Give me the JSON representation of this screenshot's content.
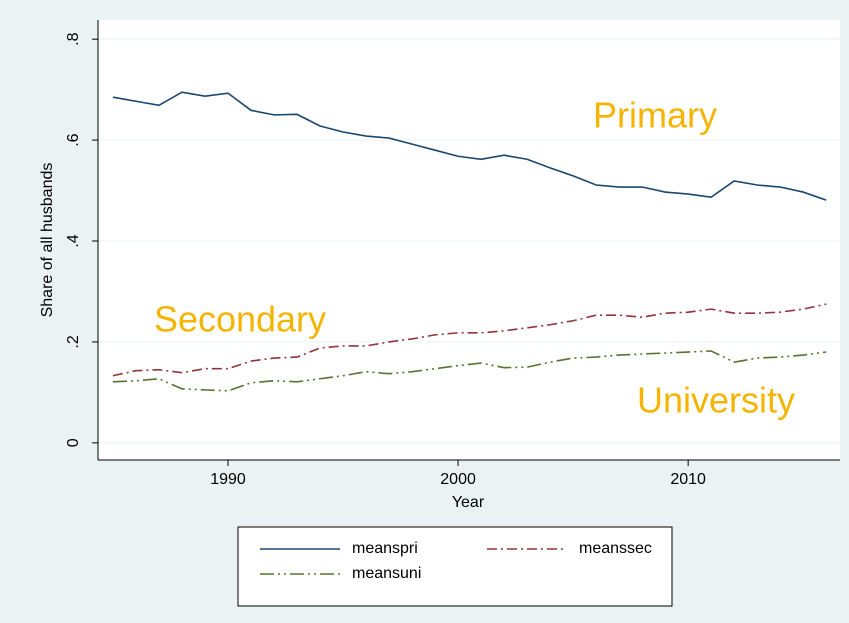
{
  "chart_data": {
    "type": "line",
    "x": [
      1985,
      1986,
      1987,
      1988,
      1989,
      1990,
      1991,
      1992,
      1993,
      1994,
      1995,
      1996,
      1997,
      1998,
      1999,
      2000,
      2001,
      2002,
      2003,
      2004,
      2005,
      2006,
      2007,
      2008,
      2009,
      2010,
      2011,
      2012,
      2013,
      2014,
      2015,
      2016
    ],
    "series": [
      {
        "name": "meanspri",
        "color": "#1a476f",
        "line_style": "solid",
        "values": [
          0.685,
          0.677,
          0.669,
          0.695,
          0.687,
          0.693,
          0.659,
          0.65,
          0.651,
          0.628,
          0.616,
          0.608,
          0.604,
          0.592,
          0.58,
          0.568,
          0.562,
          0.57,
          0.562,
          0.545,
          0.529,
          0.511,
          0.507,
          0.507,
          0.497,
          0.493,
          0.487,
          0.519,
          0.511,
          0.507,
          0.497,
          0.481
        ]
      },
      {
        "name": "meanssec",
        "color": "#90353b",
        "line_style": "dashdot",
        "values": [
          0.133,
          0.143,
          0.145,
          0.139,
          0.147,
          0.147,
          0.162,
          0.168,
          0.17,
          0.188,
          0.192,
          0.192,
          0.2,
          0.206,
          0.214,
          0.218,
          0.218,
          0.222,
          0.228,
          0.234,
          0.242,
          0.253,
          0.253,
          0.249,
          0.257,
          0.259,
          0.265,
          0.257,
          0.257,
          0.259,
          0.265,
          0.275
        ]
      },
      {
        "name": "meansuni",
        "color": "#55752f",
        "line_style": "longdashdotdot",
        "values": [
          0.121,
          0.123,
          0.127,
          0.107,
          0.105,
          0.103,
          0.119,
          0.123,
          0.121,
          0.127,
          0.133,
          0.141,
          0.137,
          0.141,
          0.147,
          0.153,
          0.158,
          0.149,
          0.15,
          0.16,
          0.168,
          0.17,
          0.174,
          0.176,
          0.178,
          0.18,
          0.182,
          0.16,
          0.168,
          0.17,
          0.174,
          0.18
        ]
      }
    ],
    "xlabel": "Year",
    "ylabel": "Share of all husbands",
    "xlim": [
      1984.35,
      2016.6
    ],
    "xticks": [
      1990,
      2000,
      2010
    ],
    "ylim": [
      -0.034,
      0.838
    ],
    "yticks": [
      0,
      {
        "value": 0.2,
        "label": ".2"
      },
      {
        "value": 0.4,
        "label": ".4"
      },
      {
        "value": 0.6,
        "label": ".6"
      },
      {
        "value": 0.8,
        "label": ".8"
      }
    ],
    "grid": true,
    "legend": "bottom",
    "annotations": [
      "Primary",
      "Secondary",
      "University"
    ]
  }
}
